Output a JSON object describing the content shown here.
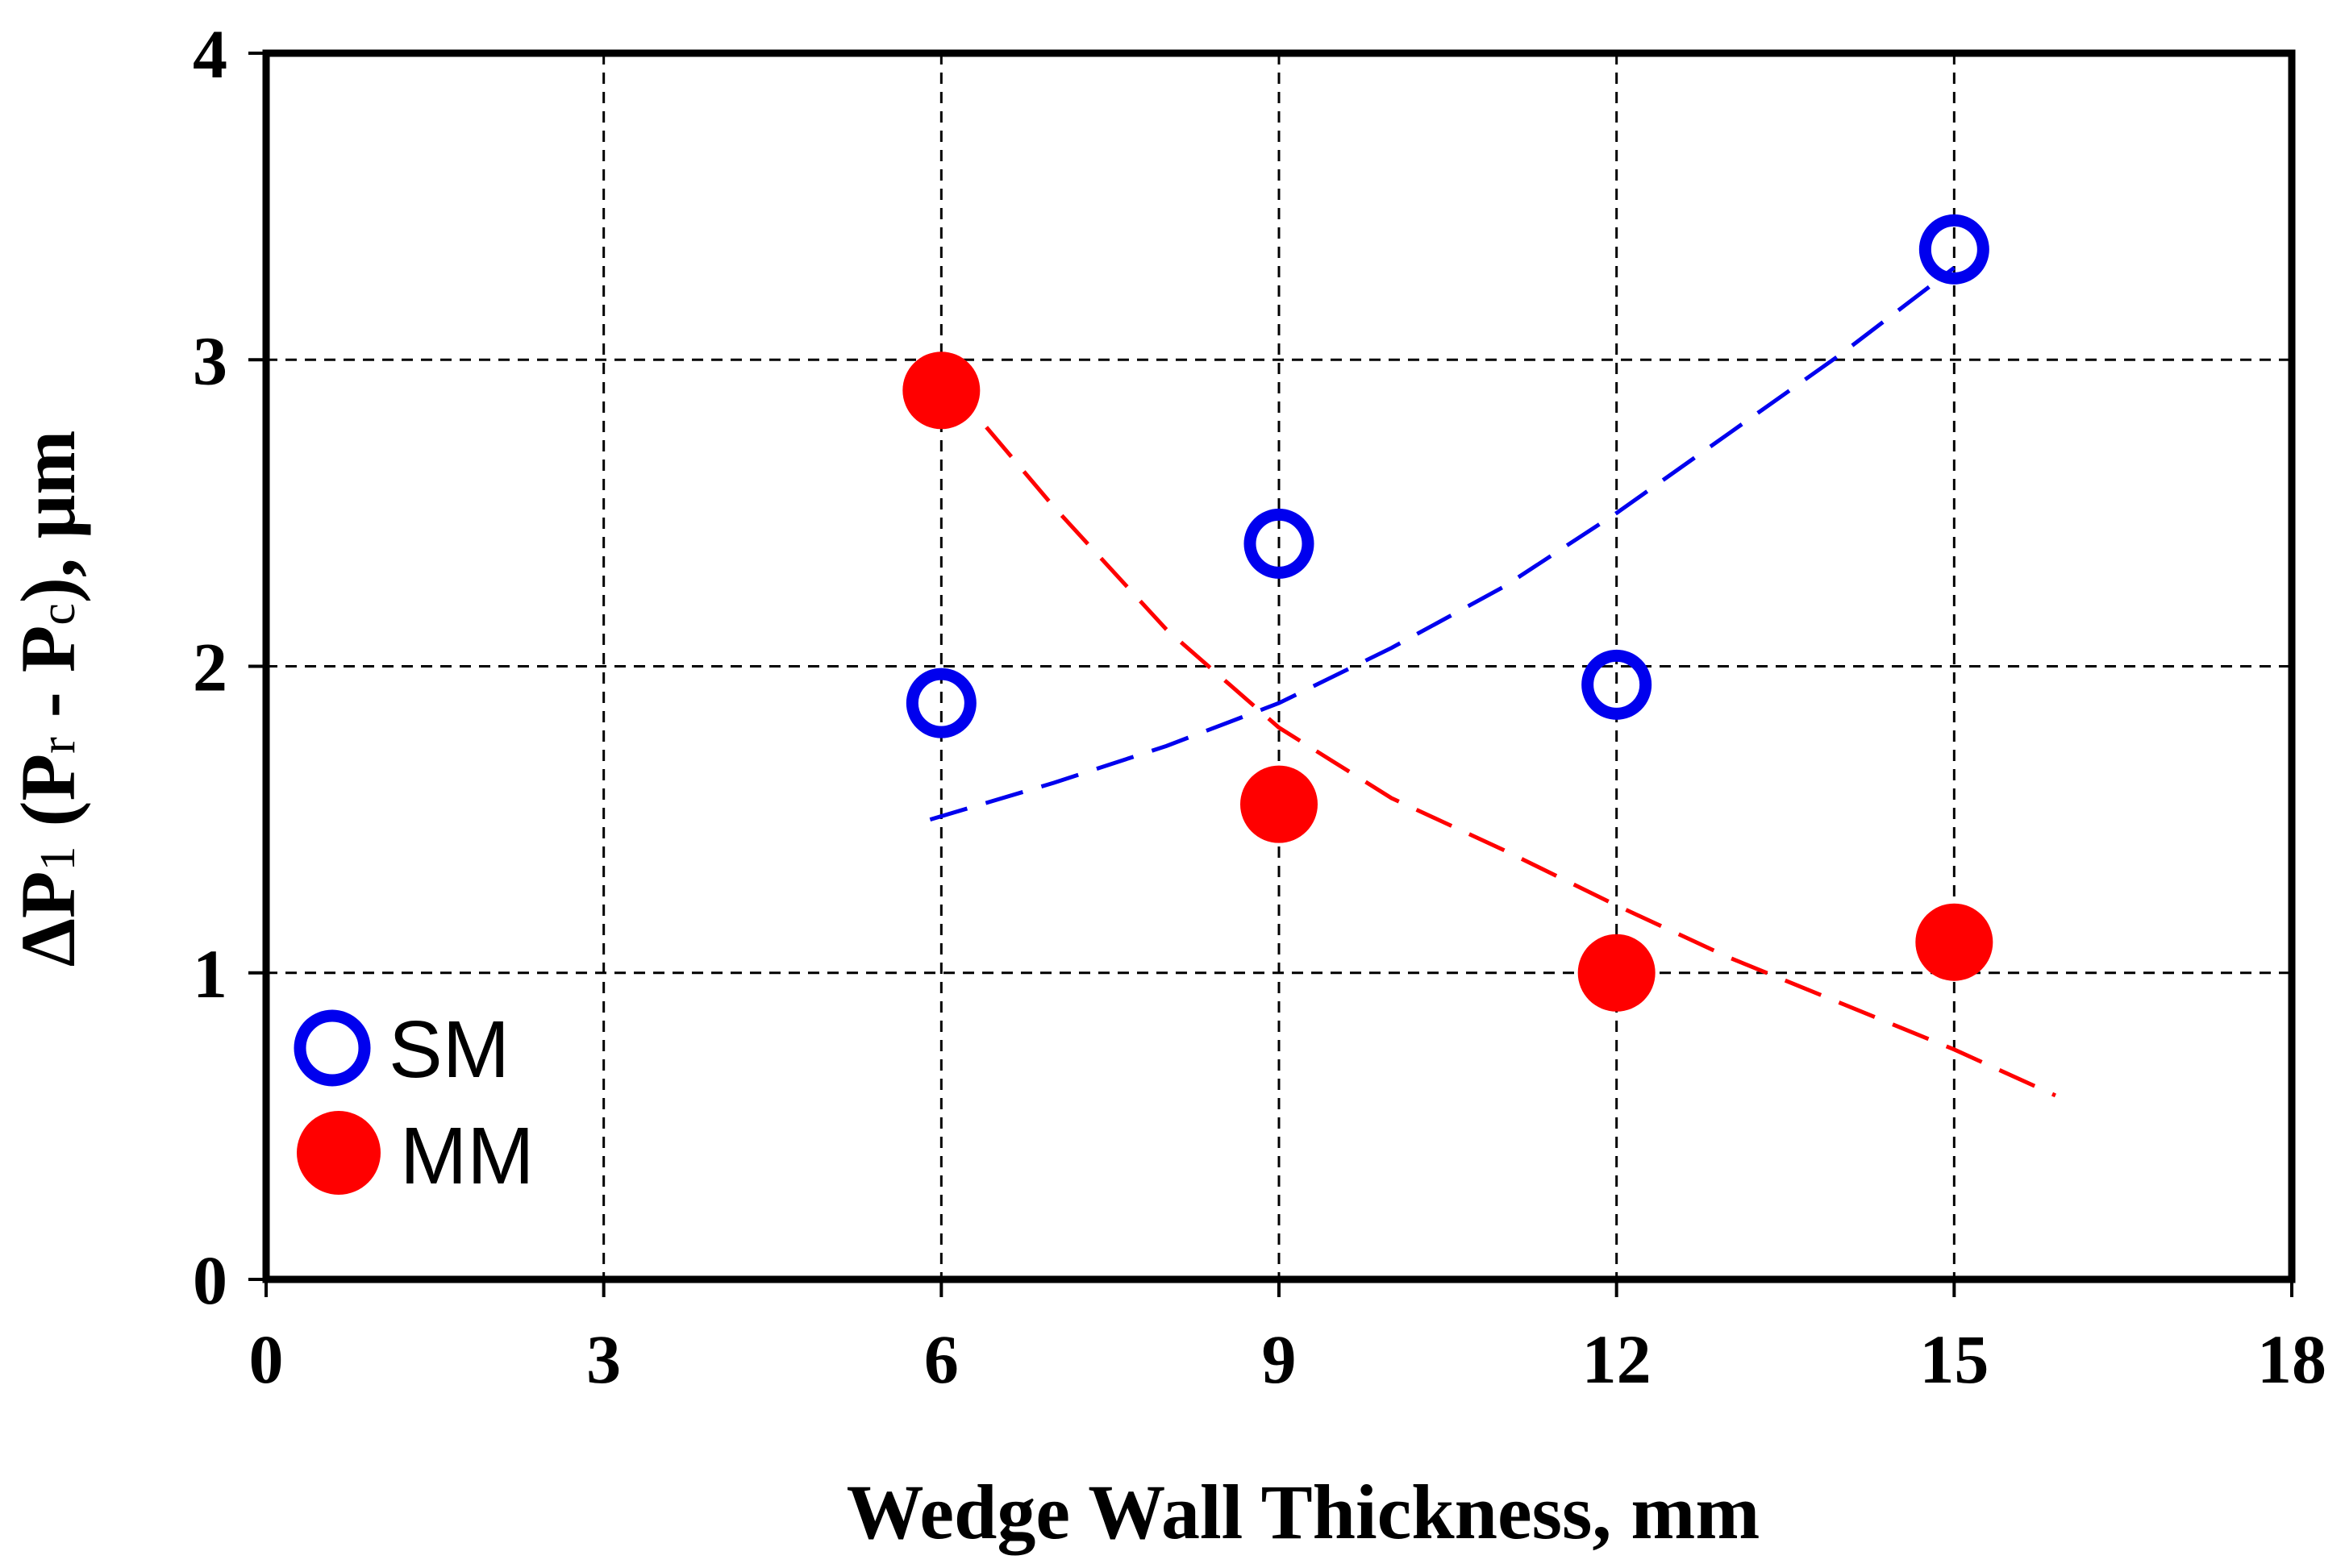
{
  "chart_data": {
    "type": "scatter",
    "title": "",
    "xlabel": "Wedge Wall Thickness, mm",
    "ylabel": {
      "prefix": "ΔP",
      "sub1": "1",
      "mid1": " (P",
      "sub2": "r",
      "mid2": " - P",
      "sub3": "c",
      "suffix": "), μm"
    },
    "xlim": [
      0,
      18
    ],
    "ylim": [
      0,
      4
    ],
    "x_ticks": [
      0,
      3,
      6,
      9,
      12,
      15,
      18
    ],
    "y_ticks": [
      0,
      1,
      2,
      3,
      4
    ],
    "x_tick_labels": [
      "0",
      "3",
      "6",
      "9",
      "12",
      "15",
      "18"
    ],
    "y_tick_labels": [
      "0",
      "1",
      "2",
      "3",
      "4"
    ],
    "grid": true,
    "legend_position": "bottom-left",
    "series": [
      {
        "name": "SM",
        "marker": "open-circle",
        "color": "#0000ee",
        "x": [
          6,
          9,
          12,
          15
        ],
        "y": [
          1.88,
          2.4,
          1.94,
          3.36
        ],
        "trendline": {
          "style": "dashed",
          "x": [
            5.9,
            7,
            8,
            9,
            10,
            11,
            12,
            13,
            14,
            15
          ],
          "y": [
            1.5,
            1.62,
            1.74,
            1.88,
            2.06,
            2.26,
            2.5,
            2.76,
            3.02,
            3.3
          ]
        }
      },
      {
        "name": "MM",
        "marker": "filled-circle",
        "color": "#ff0000",
        "x": [
          6,
          9,
          12,
          15
        ],
        "y": [
          2.9,
          1.55,
          1.0,
          1.1
        ],
        "trendline": {
          "style": "dashed",
          "x": [
            6.4,
            7,
            8,
            9,
            10,
            11,
            12,
            13,
            14,
            15,
            15.9
          ],
          "y": [
            2.78,
            2.52,
            2.12,
            1.8,
            1.57,
            1.4,
            1.22,
            1.05,
            0.9,
            0.75,
            0.6
          ]
        }
      }
    ]
  }
}
